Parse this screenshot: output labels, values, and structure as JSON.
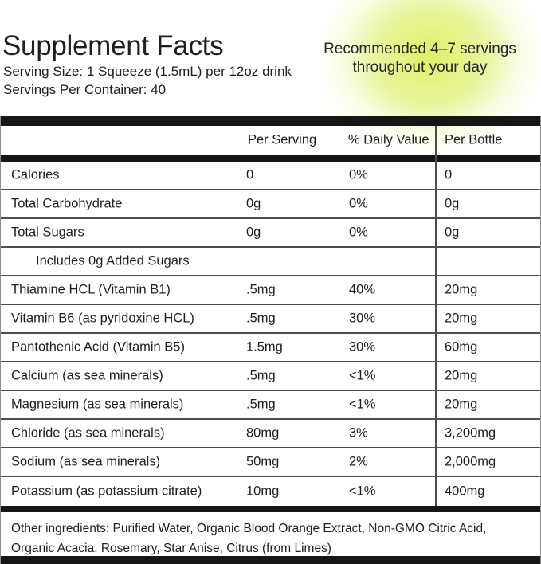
{
  "header": {
    "title": "Supplement Facts",
    "serving_size": "Serving Size: 1 Squeeze (1.5mL) per 12oz drink",
    "servings_per_container": "Servings Per Container: 40",
    "recommendation": {
      "line1": "Recommended 4–7 servings",
      "line2": "throughout your day"
    }
  },
  "table": {
    "columns": [
      "Per Serving",
      "% Daily Value",
      "Per Bottle"
    ],
    "rows": [
      {
        "name": "Calories",
        "per_serving": "0",
        "daily_value": "0%",
        "per_bottle": "0",
        "indent": false
      },
      {
        "name": "Total Carbohydrate",
        "per_serving": "0g",
        "daily_value": "0%",
        "per_bottle": "0g",
        "indent": false
      },
      {
        "name": "Total Sugars",
        "per_serving": "0g",
        "daily_value": "0%",
        "per_bottle": "0g",
        "indent": false
      },
      {
        "name": "Includes 0g Added Sugars",
        "per_serving": "",
        "daily_value": "",
        "per_bottle": "",
        "indent": true
      },
      {
        "name": "Thiamine HCL (Vitamin B1)",
        "per_serving": ".5mg",
        "daily_value": "40%",
        "per_bottle": "20mg",
        "indent": false
      },
      {
        "name": "Vitamin B6 (as pyridoxine HCL)",
        "per_serving": ".5mg",
        "daily_value": "30%",
        "per_bottle": "20mg",
        "indent": false
      },
      {
        "name": "Pantothenic Acid (Vitamin B5)",
        "per_serving": "1.5mg",
        "daily_value": "30%",
        "per_bottle": "60mg",
        "indent": false
      },
      {
        "name": "Calcium (as sea minerals)",
        "per_serving": ".5mg",
        "daily_value": "<1%",
        "per_bottle": "20mg",
        "indent": false
      },
      {
        "name": "Magnesium (as sea minerals)",
        "per_serving": ".5mg",
        "daily_value": "<1%",
        "per_bottle": "20mg",
        "indent": false
      },
      {
        "name": "Chloride (as sea minerals)",
        "per_serving": "80mg",
        "daily_value": "3%",
        "per_bottle": "3,200mg",
        "indent": false
      },
      {
        "name": "Sodium (as sea minerals)",
        "per_serving": "50mg",
        "daily_value": "2%",
        "per_bottle": "2,000mg",
        "indent": false
      },
      {
        "name": "Potassium (as potassium citrate)",
        "per_serving": "10mg",
        "daily_value": "<1%",
        "per_bottle": "400mg",
        "indent": false
      }
    ]
  },
  "footer": {
    "other_ingredients": "Other ingredients: Purified Water, Organic Blood Orange Extract, Non-GMO Citric Acid, Organic Acacia, Rosemary, Star Anise, Citrus (from Limes)"
  },
  "colors": {
    "text": "#1f1f1f",
    "bar": "#161616",
    "divider": "#4d4d4d",
    "border": "#8f8f8f",
    "glow": "#dcee5f"
  }
}
